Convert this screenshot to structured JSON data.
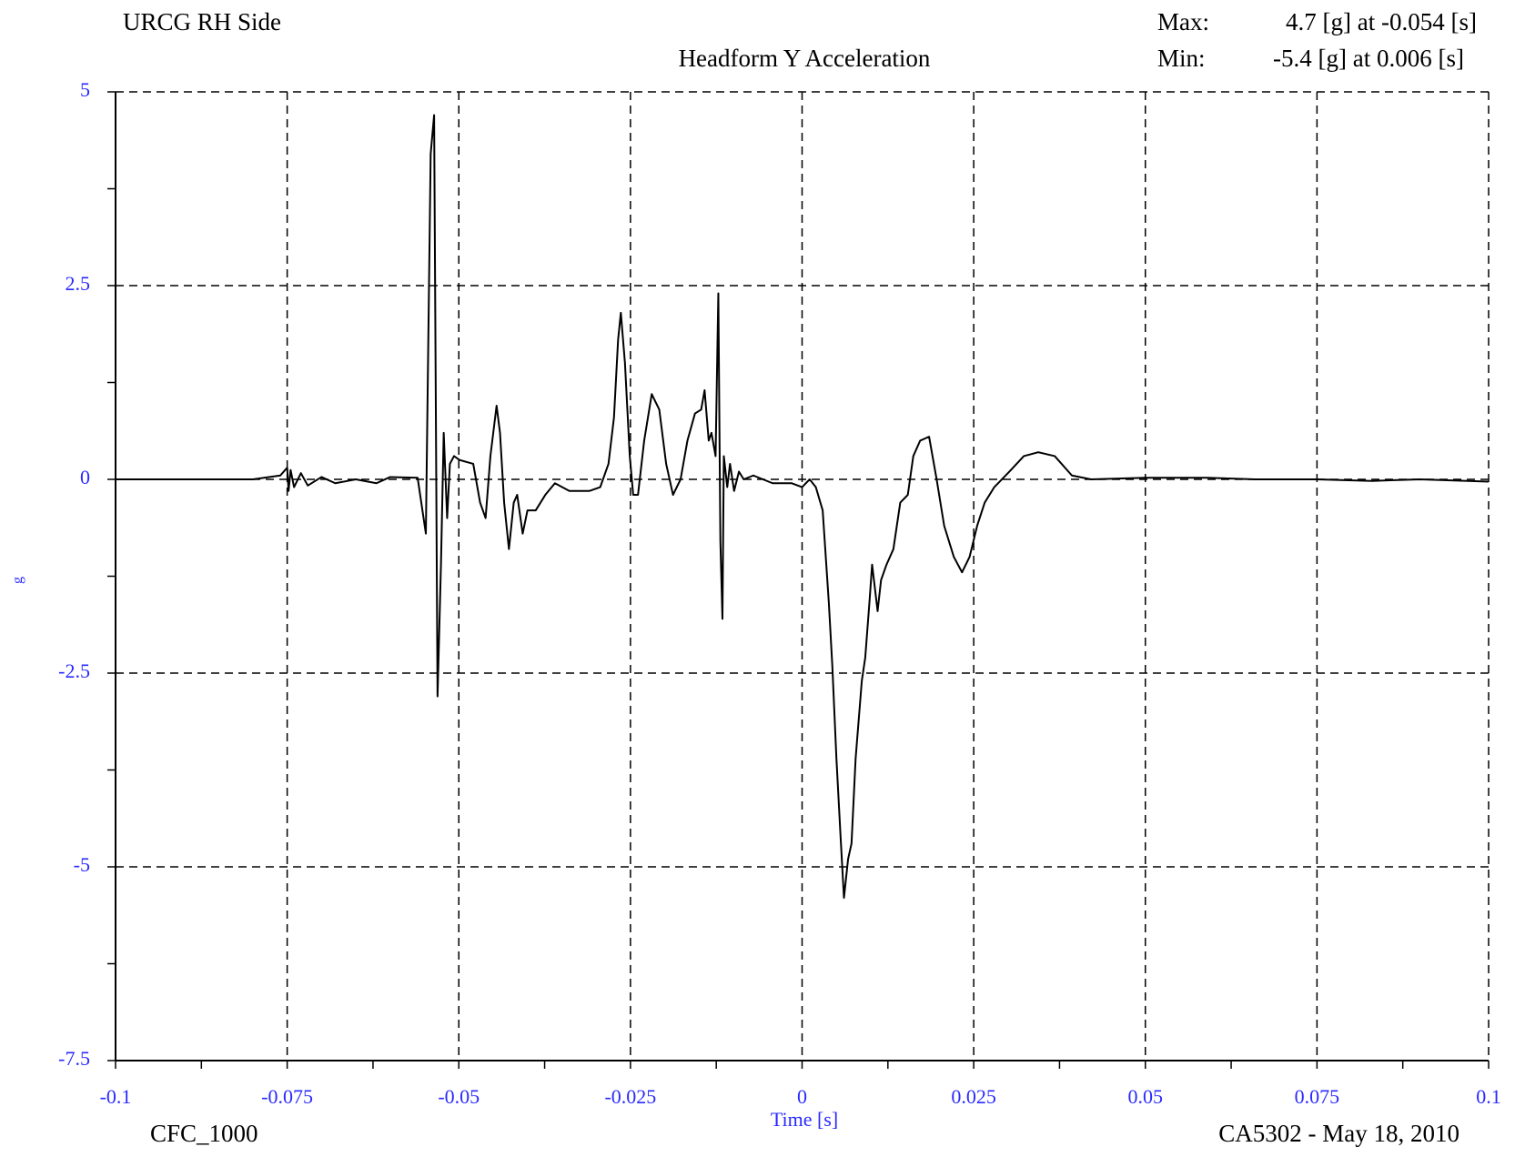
{
  "chart_data": {
    "type": "line",
    "title": "Headform Y Acceleration",
    "subtitle": "URCG RH Side",
    "annotations": {
      "max_label": "Max:",
      "max_text": "4.7 [g] at -0.054 [s]",
      "min_label": "Min:",
      "min_text": "-5.4 [g] at 0.006 [s]",
      "filter": "CFC_1000",
      "test": "CA5302 - May 18, 2010"
    },
    "xlabel": "Time [s]",
    "ylabel": "g",
    "xlim": [
      -0.1,
      0.1
    ],
    "ylim": [
      -7.5,
      5
    ],
    "xticks": [
      -0.1,
      -0.075,
      -0.05,
      -0.025,
      0,
      0.025,
      0.05,
      0.075,
      0.1
    ],
    "yticks": [
      5,
      2.5,
      0,
      -2.5,
      -5,
      -7.5
    ],
    "xminorticks": [
      -0.0875,
      -0.0625,
      -0.0375,
      -0.0125,
      0.0125,
      0.0375,
      0.0625,
      0.0875
    ],
    "yminorticks": [
      3.75,
      1.25,
      -1.25,
      -3.75,
      -6.25
    ],
    "grid": true,
    "series": [
      {
        "name": "Headform Y Acceleration",
        "color": "#000000",
        "x": [
          -0.1,
          -0.08,
          -0.076,
          -0.075,
          -0.0748,
          -0.0745,
          -0.074,
          -0.073,
          -0.072,
          -0.07,
          -0.068,
          -0.065,
          -0.062,
          -0.06,
          -0.056,
          -0.0548,
          -0.0541,
          -0.0536,
          -0.0531,
          -0.0526,
          -0.0522,
          -0.0517,
          -0.0513,
          -0.0507,
          -0.0499,
          -0.0479,
          -0.0469,
          -0.0461,
          -0.0454,
          -0.0445,
          -0.044,
          -0.0434,
          -0.0427,
          -0.042,
          -0.0415,
          -0.0407,
          -0.04,
          -0.0388,
          -0.0374,
          -0.036,
          -0.0339,
          -0.031,
          -0.0294,
          -0.0282,
          -0.0274,
          -0.0268,
          -0.0264,
          -0.0258,
          -0.0251,
          -0.0246,
          -0.0239,
          -0.023,
          -0.0219,
          -0.0208,
          -0.0198,
          -0.0188,
          -0.0177,
          -0.0167,
          -0.0156,
          -0.0147,
          -0.0142,
          -0.0136,
          -0.0132,
          -0.0126,
          -0.0122,
          -0.0119,
          -0.0116,
          -0.0114,
          -0.0109,
          -0.0105,
          -0.0099,
          -0.0092,
          -0.0085,
          -0.0071,
          -0.0043,
          -0.0015,
          0,
          0.0011,
          0.002,
          0.003,
          0.0039,
          0.0044,
          0.005,
          0.0056,
          0.0061,
          0.0067,
          0.0072,
          0.0078,
          0.0087,
          0.0092,
          0.0098,
          0.0102,
          0.0106,
          0.011,
          0.0115,
          0.0123,
          0.0133,
          0.0143,
          0.0154,
          0.0162,
          0.0172,
          0.0185,
          0.0196,
          0.0207,
          0.0221,
          0.0233,
          0.0244,
          0.0255,
          0.0266,
          0.028,
          0.0302,
          0.0323,
          0.0344,
          0.0368,
          0.0393,
          0.0421,
          0.05,
          0.059,
          0.066,
          0.075,
          0.083,
          0.09,
          0.1
        ],
        "values": [
          0,
          0,
          0.05,
          0.15,
          -0.15,
          0.12,
          -0.1,
          0.08,
          -0.08,
          0.03,
          -0.05,
          0,
          -0.05,
          0.03,
          0.02,
          -0.7,
          4.2,
          4.7,
          -2.8,
          -1.1,
          0.6,
          -0.5,
          0.2,
          0.3,
          0.25,
          0.2,
          -0.3,
          -0.5,
          0.3,
          0.95,
          0.6,
          -0.3,
          -0.9,
          -0.3,
          -0.2,
          -0.7,
          -0.4,
          -0.4,
          -0.2,
          -0.05,
          -0.15,
          -0.15,
          -0.1,
          0.2,
          0.8,
          1.8,
          2.15,
          1.5,
          0.3,
          -0.2,
          -0.2,
          0.5,
          1.1,
          0.9,
          0.2,
          -0.2,
          0,
          0.5,
          0.85,
          0.9,
          1.15,
          0.5,
          0.6,
          0.3,
          2.4,
          -0.8,
          -1.8,
          0.3,
          -0.1,
          0.2,
          -0.15,
          0.1,
          0,
          0.05,
          -0.05,
          -0.05,
          -0.1,
          0,
          -0.1,
          -0.4,
          -1.6,
          -2.4,
          -3.6,
          -4.6,
          -5.4,
          -4.9,
          -4.7,
          -3.6,
          -2.6,
          -2.3,
          -1.6,
          -1.1,
          -1.4,
          -1.7,
          -1.3,
          -1.1,
          -0.9,
          -0.3,
          -0.2,
          0.3,
          0.5,
          0.55,
          0,
          -0.6,
          -1,
          -1.2,
          -1,
          -0.6,
          -0.3,
          -0.1,
          0.1,
          0.3,
          0.35,
          0.3,
          0.05,
          0,
          0.02,
          0.02,
          0,
          0,
          -0.02,
          0,
          -0.03
        ]
      }
    ]
  }
}
